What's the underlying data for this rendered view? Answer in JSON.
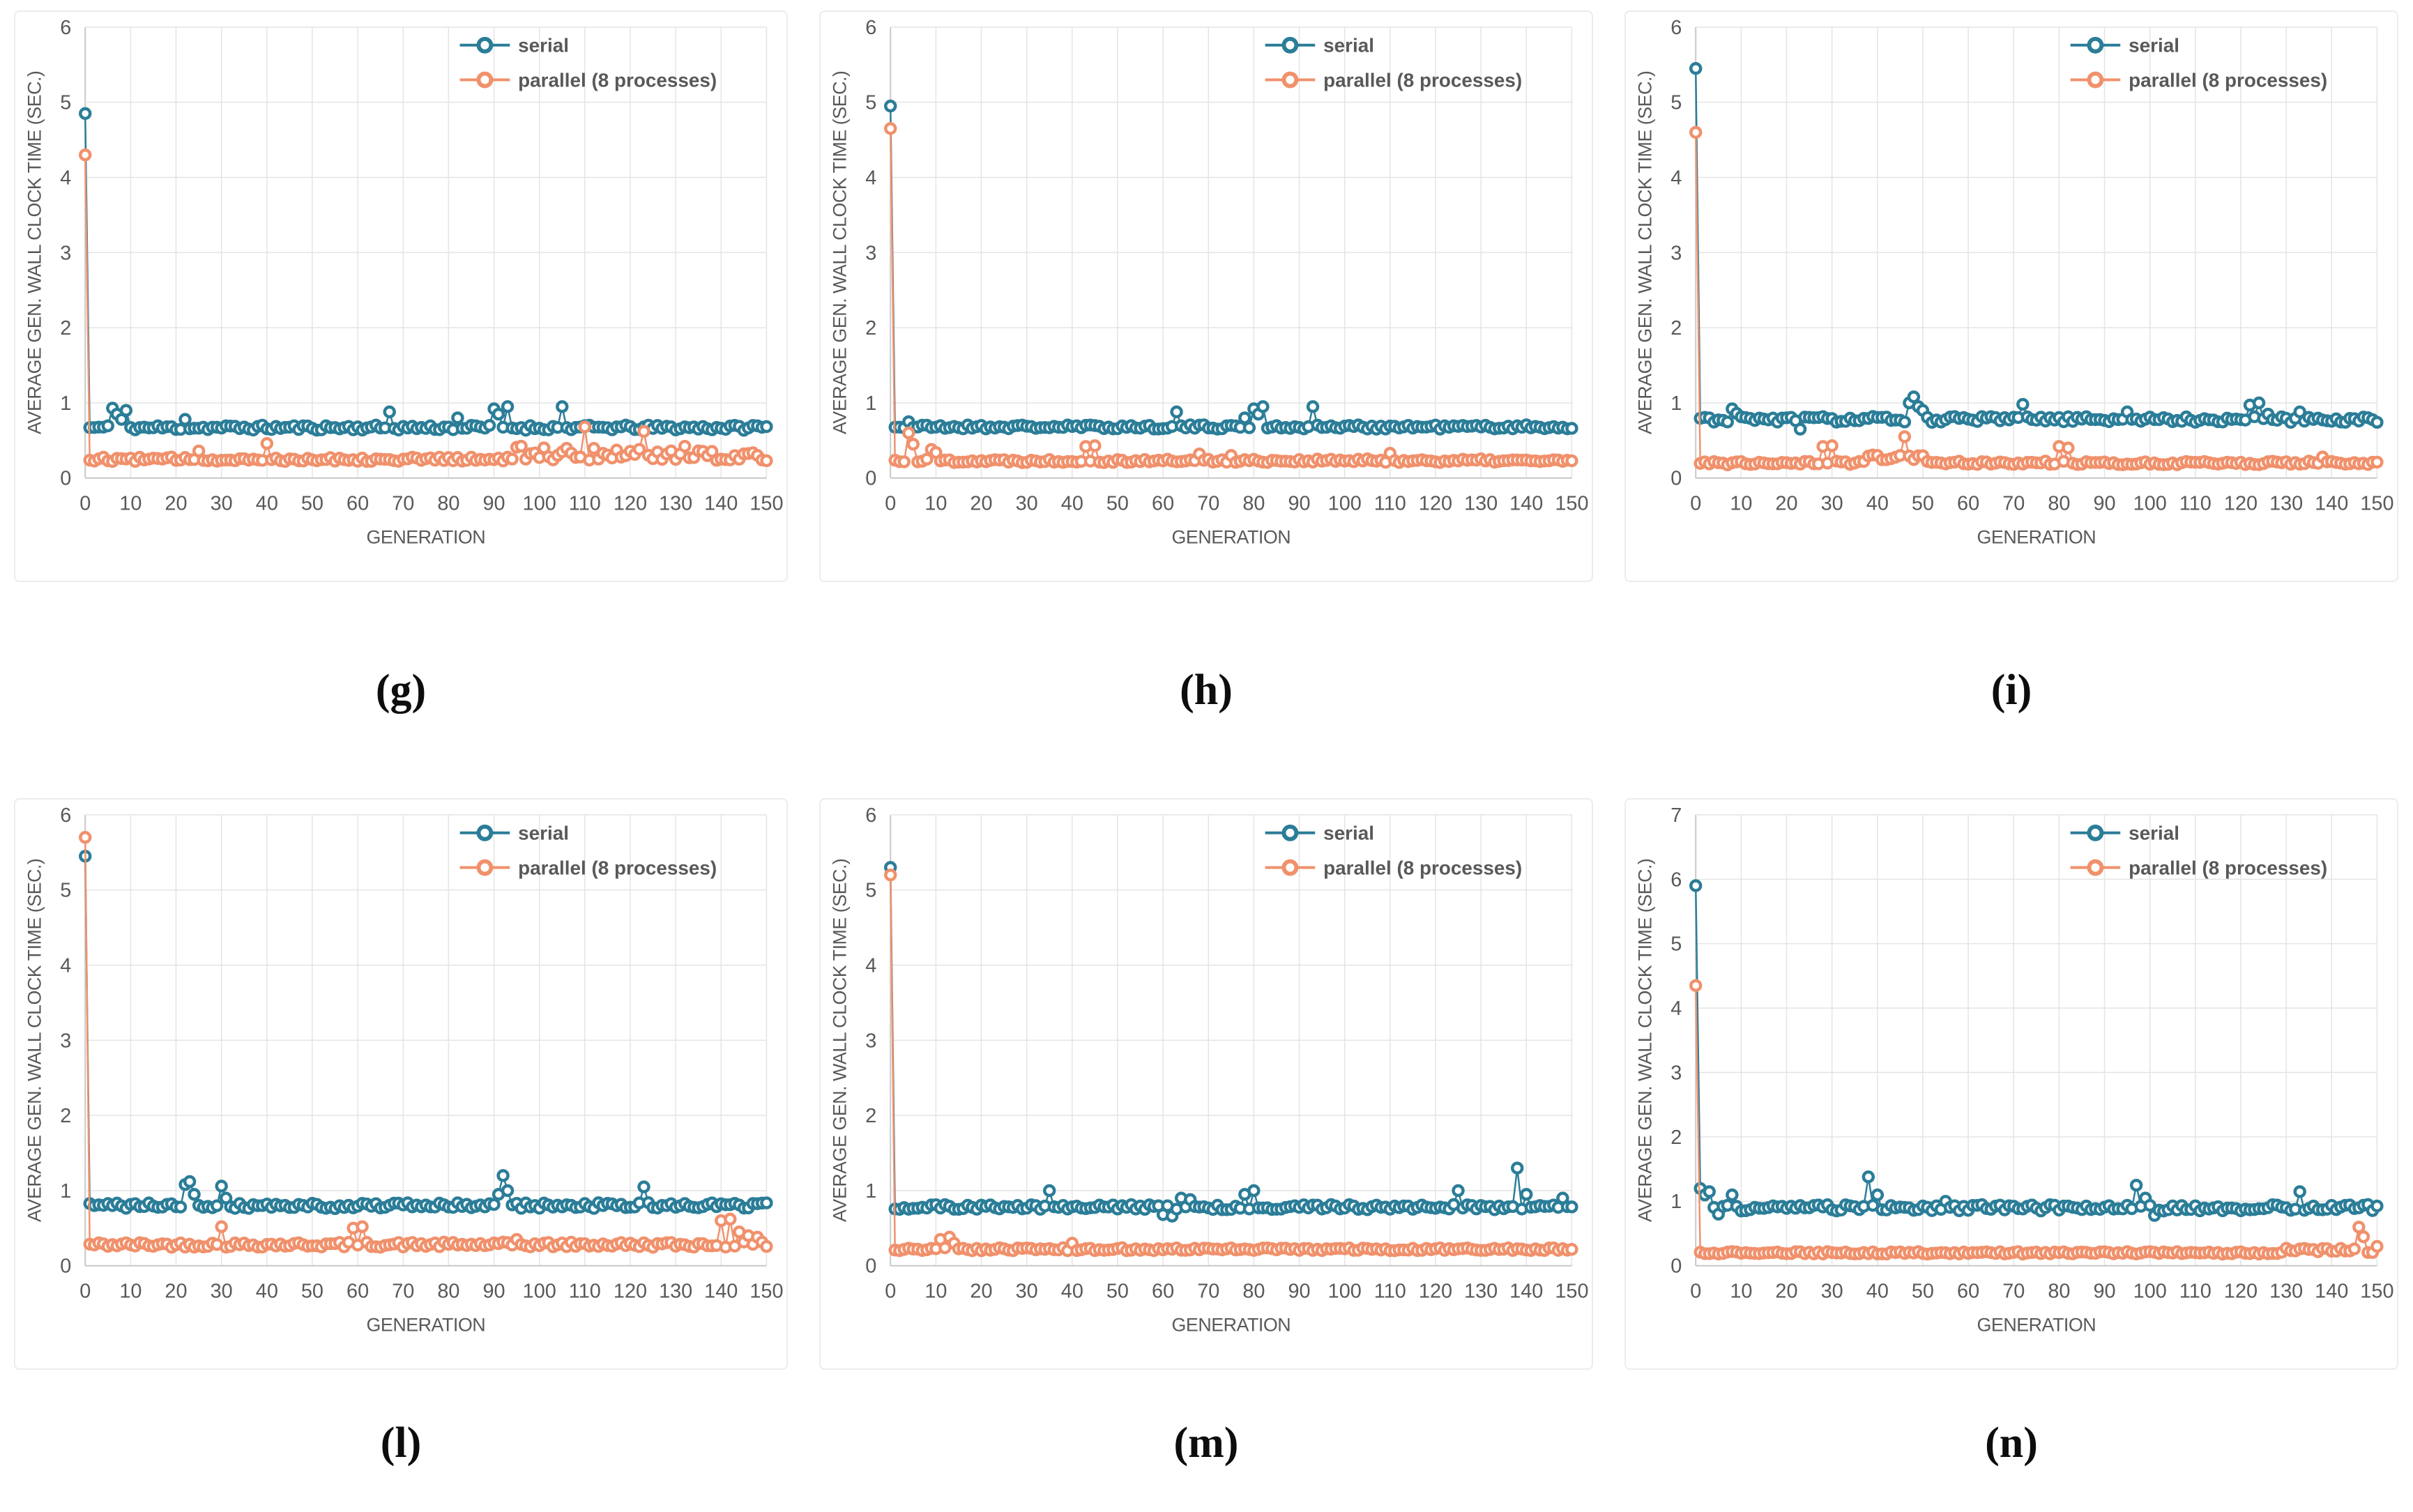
{
  "figure": {
    "xlabel": "GENERATION",
    "ylabel": "AVERAGE GEN. WALL CLOCK TIME (SEC.)",
    "x_ticks": [
      0,
      10,
      20,
      30,
      40,
      50,
      60,
      70,
      80,
      90,
      100,
      110,
      120,
      130,
      140,
      150
    ],
    "x_range": {
      "min": 0,
      "max": 150,
      "step": 1
    },
    "legend": [
      "serial",
      "parallel (8 processes)"
    ],
    "legend_position": "top-right-inside",
    "grid": "on",
    "colors": {
      "serial": "#2b7d98",
      "parallel": "#f0916c",
      "grid": "#e4e4e4",
      "axis": "#c8c8c8",
      "text": "#595959",
      "caption": "#0d0d0d",
      "panel_border": "#ececec"
    }
  },
  "chart_data": [
    {
      "type": "line",
      "caption": "(g)",
      "ylim": [
        0,
        6
      ],
      "yticks": [
        0,
        1,
        2,
        3,
        4,
        5,
        6
      ],
      "series": [
        {
          "name": "serial",
          "color_key": "serial",
          "seed": 11,
          "first": 4.85,
          "baseline": 0.67,
          "noise": 0.035,
          "spikes": [
            [
              6,
              0.93
            ],
            [
              7,
              0.85
            ],
            [
              8,
              0.78
            ],
            [
              9,
              0.9
            ],
            [
              22,
              0.78
            ],
            [
              67,
              0.88
            ],
            [
              82,
              0.8
            ],
            [
              90,
              0.92
            ],
            [
              91,
              0.85
            ],
            [
              93,
              0.95
            ],
            [
              105,
              0.95
            ],
            [
              147,
              0.7
            ]
          ]
        },
        {
          "name": "parallel (8 processes)",
          "color_key": "parallel",
          "seed": 12,
          "first": 4.3,
          "baseline": 0.25,
          "noise": 0.03,
          "spikes": [
            [
              25,
              0.36
            ],
            [
              40,
              0.46
            ],
            [
              110,
              0.68
            ],
            [
              123,
              0.62
            ]
          ],
          "regions": [
            {
              "from": 95,
              "to": 135,
              "baseline": 0.33,
              "noise": 0.1
            },
            {
              "from": 136,
              "to": 150,
              "baseline": 0.3,
              "noise": 0.07
            }
          ]
        }
      ]
    },
    {
      "type": "line",
      "caption": "(h)",
      "ylim": [
        0,
        6
      ],
      "yticks": [
        0,
        1,
        2,
        3,
        4,
        5,
        6
      ],
      "series": [
        {
          "name": "serial",
          "color_key": "serial",
          "seed": 21,
          "first": 4.95,
          "baseline": 0.68,
          "noise": 0.03,
          "spikes": [
            [
              4,
              0.75
            ],
            [
              63,
              0.88
            ],
            [
              78,
              0.8
            ],
            [
              80,
              0.92
            ],
            [
              81,
              0.85
            ],
            [
              82,
              0.95
            ],
            [
              93,
              0.95
            ]
          ]
        },
        {
          "name": "parallel (8 processes)",
          "color_key": "parallel",
          "seed": 22,
          "first": 4.65,
          "baseline": 0.23,
          "noise": 0.025,
          "spikes": [
            [
              4,
              0.6
            ],
            [
              5,
              0.45
            ],
            [
              9,
              0.38
            ],
            [
              10,
              0.34
            ],
            [
              43,
              0.42
            ],
            [
              45,
              0.43
            ],
            [
              68,
              0.32
            ],
            [
              75,
              0.3
            ],
            [
              110,
              0.33
            ]
          ]
        }
      ]
    },
    {
      "type": "line",
      "caption": "(i)",
      "ylim": [
        0,
        6
      ],
      "yticks": [
        0,
        1,
        2,
        3,
        4,
        5,
        6
      ],
      "series": [
        {
          "name": "serial",
          "color_key": "serial",
          "seed": 31,
          "first": 5.45,
          "baseline": 0.78,
          "noise": 0.04,
          "spikes": [
            [
              8,
              0.92
            ],
            [
              9,
              0.86
            ],
            [
              23,
              0.65
            ],
            [
              47,
              1.0
            ],
            [
              48,
              1.08
            ],
            [
              49,
              0.95
            ],
            [
              50,
              0.9
            ],
            [
              72,
              0.98
            ],
            [
              95,
              0.88
            ],
            [
              122,
              0.97
            ],
            [
              124,
              1.0
            ],
            [
              126,
              0.85
            ],
            [
              133,
              0.88
            ]
          ]
        },
        {
          "name": "parallel (8 processes)",
          "color_key": "parallel",
          "seed": 32,
          "first": 4.6,
          "baseline": 0.2,
          "noise": 0.025,
          "spikes": [
            [
              28,
              0.42
            ],
            [
              30,
              0.43
            ],
            [
              46,
              0.55
            ],
            [
              80,
              0.42
            ],
            [
              82,
              0.4
            ],
            [
              138,
              0.28
            ]
          ],
          "regions": [
            {
              "from": 38,
              "to": 50,
              "baseline": 0.28,
              "noise": 0.04
            }
          ]
        }
      ]
    },
    {
      "type": "line",
      "caption": "(l)",
      "ylim": [
        0,
        6
      ],
      "yticks": [
        0,
        1,
        2,
        3,
        4,
        5,
        6
      ],
      "series": [
        {
          "name": "serial",
          "color_key": "serial",
          "seed": 41,
          "first": 5.45,
          "baseline": 0.8,
          "noise": 0.04,
          "spikes": [
            [
              22,
              1.08
            ],
            [
              23,
              1.12
            ],
            [
              24,
              0.95
            ],
            [
              30,
              1.06
            ],
            [
              31,
              0.9
            ],
            [
              91,
              0.95
            ],
            [
              92,
              1.2
            ],
            [
              93,
              1.0
            ],
            [
              123,
              1.05
            ]
          ]
        },
        {
          "name": "parallel (8 processes)",
          "color_key": "parallel",
          "seed": 42,
          "first": 5.7,
          "baseline": 0.28,
          "noise": 0.035,
          "spikes": [
            [
              30,
              0.52
            ],
            [
              59,
              0.5
            ],
            [
              61,
              0.52
            ],
            [
              95,
              0.35
            ],
            [
              140,
              0.6
            ],
            [
              142,
              0.62
            ],
            [
              144,
              0.45
            ],
            [
              146,
              0.4
            ],
            [
              148,
              0.38
            ]
          ]
        }
      ]
    },
    {
      "type": "line",
      "caption": "(m)",
      "ylim": [
        0,
        6
      ],
      "yticks": [
        0,
        1,
        2,
        3,
        4,
        5,
        6
      ],
      "series": [
        {
          "name": "serial",
          "color_key": "serial",
          "seed": 51,
          "first": 5.3,
          "baseline": 0.78,
          "noise": 0.035,
          "spikes": [
            [
              35,
              1.0
            ],
            [
              60,
              0.68
            ],
            [
              62,
              0.66
            ],
            [
              64,
              0.9
            ],
            [
              66,
              0.88
            ],
            [
              78,
              0.95
            ],
            [
              80,
              1.0
            ],
            [
              125,
              1.0
            ],
            [
              138,
              1.3
            ],
            [
              140,
              0.95
            ],
            [
              148,
              0.9
            ]
          ]
        },
        {
          "name": "parallel (8 processes)",
          "color_key": "parallel",
          "seed": 52,
          "first": 5.2,
          "baseline": 0.22,
          "noise": 0.02,
          "spikes": [
            [
              11,
              0.35
            ],
            [
              13,
              0.38
            ],
            [
              14,
              0.3
            ],
            [
              40,
              0.3
            ]
          ]
        }
      ]
    },
    {
      "type": "line",
      "caption": "(n)",
      "ylim": [
        0,
        7
      ],
      "yticks": [
        0,
        1,
        2,
        3,
        4,
        5,
        6,
        7
      ],
      "series": [
        {
          "name": "serial",
          "color_key": "serial",
          "seed": 61,
          "first": 5.9,
          "baseline": 0.9,
          "noise": 0.05,
          "spikes": [
            [
              1,
              1.2
            ],
            [
              2,
              1.1
            ],
            [
              3,
              1.15
            ],
            [
              5,
              0.8
            ],
            [
              8,
              1.1
            ],
            [
              10,
              0.85
            ],
            [
              38,
              1.38
            ],
            [
              40,
              1.1
            ],
            [
              55,
              1.0
            ],
            [
              97,
              1.25
            ],
            [
              99,
              1.05
            ],
            [
              101,
              0.78
            ],
            [
              103,
              0.85
            ],
            [
              133,
              1.15
            ],
            [
              148,
              0.95
            ]
          ]
        },
        {
          "name": "parallel (8 processes)",
          "color_key": "parallel",
          "seed": 62,
          "first": 4.35,
          "baseline": 0.2,
          "noise": 0.02,
          "spikes": [
            [
              146,
              0.6
            ],
            [
              147,
              0.45
            ],
            [
              150,
              0.3
            ]
          ],
          "regions": [
            {
              "from": 130,
              "to": 145,
              "baseline": 0.24,
              "noise": 0.035
            }
          ]
        }
      ]
    }
  ]
}
